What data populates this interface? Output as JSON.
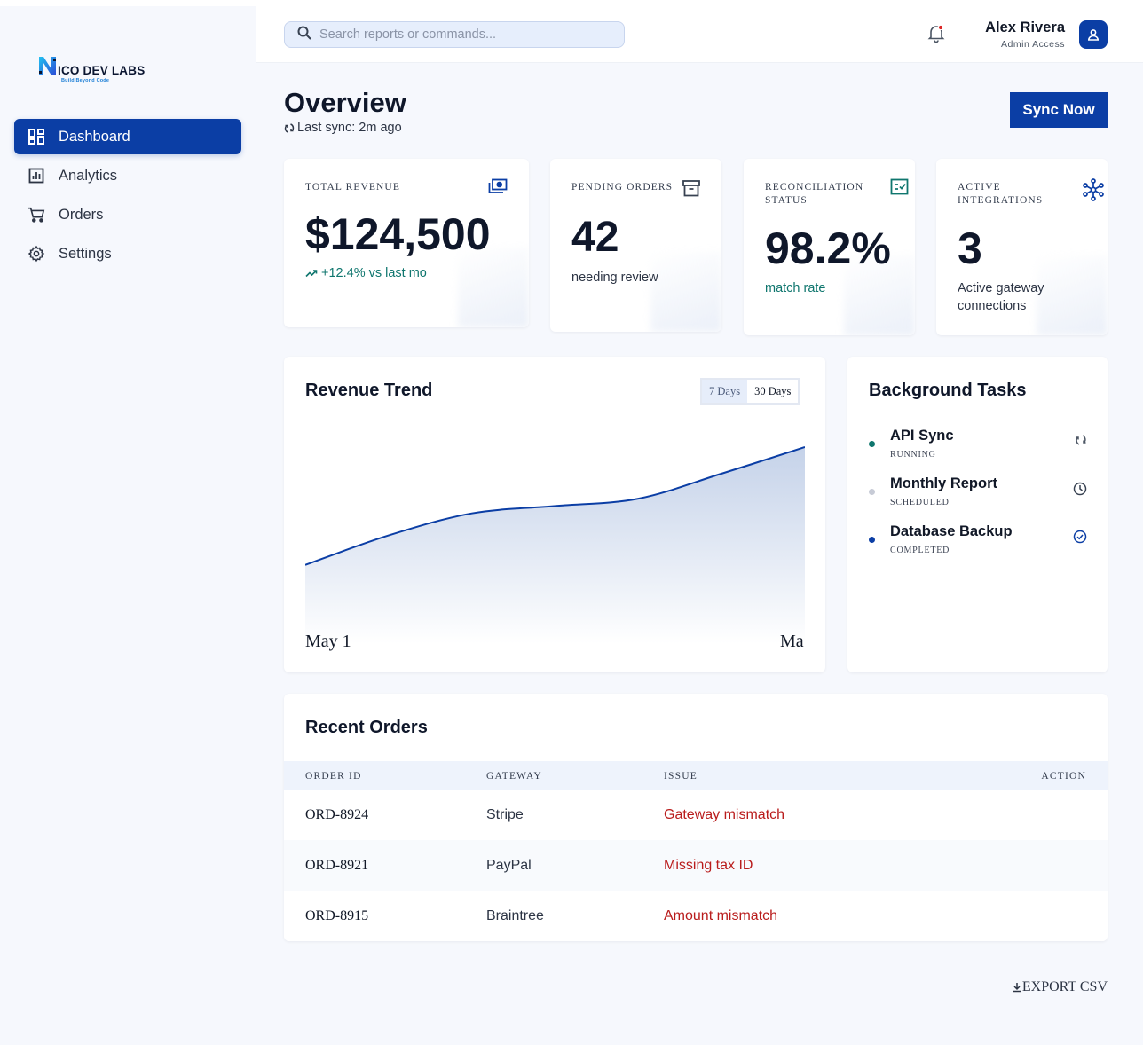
{
  "brand": {
    "name": "ICO DEV LABS",
    "tagline": "Build Beyond Code",
    "mark_letter": "N"
  },
  "sidebar": {
    "items": [
      {
        "label": "Dashboard",
        "icon": "dashboard-icon",
        "active": true
      },
      {
        "label": "Analytics",
        "icon": "analytics-icon",
        "active": false
      },
      {
        "label": "Orders",
        "icon": "cart-icon",
        "active": false
      },
      {
        "label": "Settings",
        "icon": "gear-icon",
        "active": false
      }
    ]
  },
  "header": {
    "search_placeholder": "Search reports or commands...",
    "user": {
      "name": "Alex Rivera",
      "role": "Admin Access"
    }
  },
  "page": {
    "title": "Overview",
    "last_sync": "Last sync: 2m ago",
    "sync_button": "Sync Now"
  },
  "stats": [
    {
      "label": "TOTAL REVENUE",
      "value": "$124,500",
      "sub": "+12.4% vs last mo",
      "icon": "money-icon"
    },
    {
      "label": "PENDING ORDERS",
      "value": "42",
      "sub": "needing review",
      "icon": "archive-icon"
    },
    {
      "label": "RECONCILIATION STATUS",
      "value": "98.2%",
      "sub": "match rate",
      "icon": "checklist-icon"
    },
    {
      "label": "ACTIVE INTEGRATIONS",
      "value": "3",
      "sub": "Active gateway connections",
      "icon": "hub-icon"
    }
  ],
  "revenue_trend": {
    "title": "Revenue Trend",
    "ranges": [
      "7 Days",
      "30 Days"
    ],
    "selected_range": "30 Days",
    "x_start_label": "May 1",
    "x_end_label": "Ma"
  },
  "chart_data": {
    "type": "area",
    "title": "Revenue Trend",
    "xlabel": "",
    "ylabel": "",
    "x_tick_labels": [
      "May 1",
      "Ma"
    ],
    "relative_values": [
      0.2,
      0.4,
      0.55,
      0.6,
      0.65,
      0.82,
      1.0
    ],
    "grid": false,
    "color": "#0b3ea5"
  },
  "tasks": {
    "title": "Background Tasks",
    "items": [
      {
        "name": "API Sync",
        "status": "RUNNING",
        "dot_color": "#0f766e",
        "icon": "sync-icon"
      },
      {
        "name": "Monthly Report",
        "status": "SCHEDULED",
        "dot_color": "#c7cbd6",
        "icon": "clock-icon"
      },
      {
        "name": "Database Backup",
        "status": "COMPLETED",
        "dot_color": "#0b3ea5",
        "icon": "check-circle-icon"
      }
    ]
  },
  "orders": {
    "title": "Recent Orders",
    "columns": [
      "ORDER ID",
      "GATEWAY",
      "ISSUE",
      "ACTION"
    ],
    "rows": [
      {
        "id": "ORD-8924",
        "gateway": "Stripe",
        "issue": "Gateway mismatch"
      },
      {
        "id": "ORD-8921",
        "gateway": "PayPal",
        "issue": "Missing tax ID"
      },
      {
        "id": "ORD-8915",
        "gateway": "Braintree",
        "issue": "Amount mismatch"
      }
    ]
  },
  "export_label": "EXPORT CSV",
  "colors": {
    "primary": "#0b3ea5",
    "teal": "#0f766e",
    "error": "#b91c1c"
  }
}
